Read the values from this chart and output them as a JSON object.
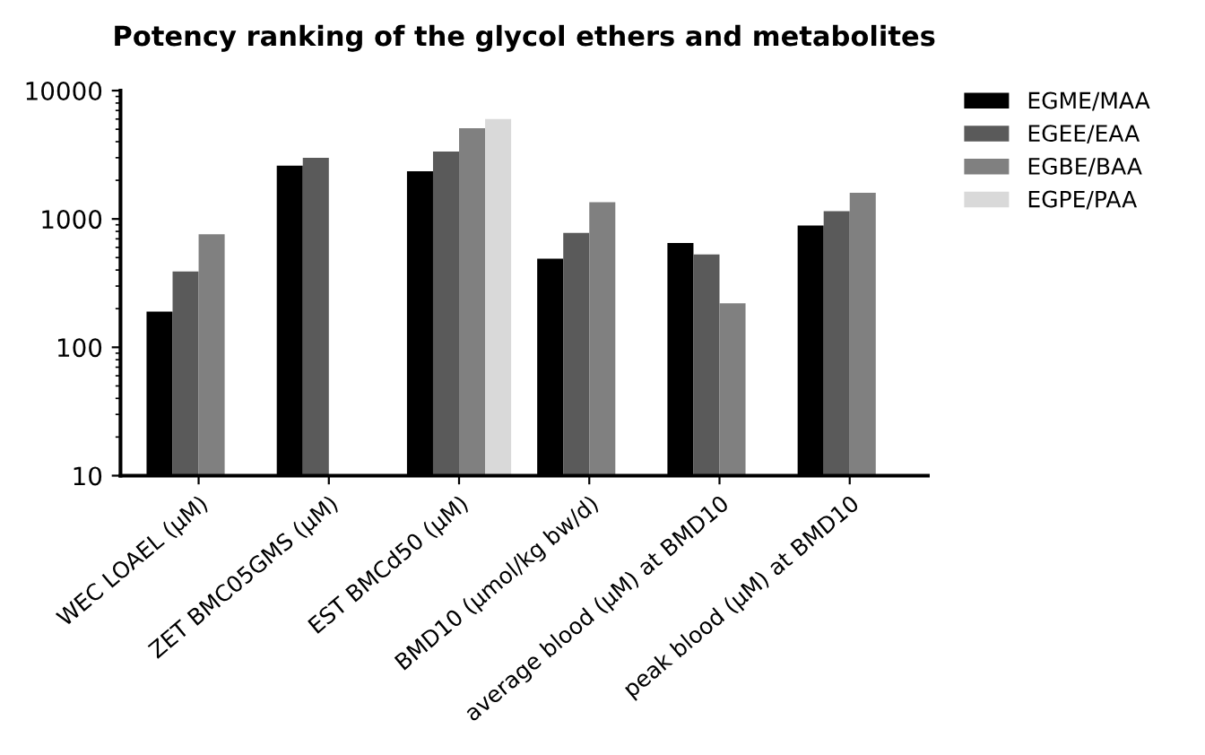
{
  "chart_data": {
    "type": "bar",
    "title": "Potency ranking of the glycol ethers and metabolites",
    "categories": [
      "WEC LOAEL (µM)",
      "ZET BMC05GMS (µM)",
      "EST BMCd50 (µM)",
      "BMD10 (µmol/kg bw/d)",
      "average blood (µM) at BMD10",
      "peak blood (µM) at BMD10"
    ],
    "series": [
      {
        "name": "EGME/MAA",
        "color": "#000000",
        "values": [
          190,
          2600,
          2350,
          490,
          650,
          890
        ]
      },
      {
        "name": "EGEE/EAA",
        "color": "#5a5a5a",
        "values": [
          390,
          3000,
          3350,
          780,
          530,
          1150
        ]
      },
      {
        "name": "EGBE/BAA",
        "color": "#808080",
        "values": [
          760,
          null,
          5100,
          1350,
          220,
          1600
        ]
      },
      {
        "name": "EGPE/PAA",
        "color": "#d9d9d9",
        "values": [
          null,
          null,
          6000,
          null,
          null,
          null
        ]
      }
    ],
    "log": "y",
    "ylim": [
      10,
      10000
    ],
    "yticks": [
      10,
      100,
      1000,
      10000
    ],
    "grid": false,
    "legend": "top right"
  }
}
